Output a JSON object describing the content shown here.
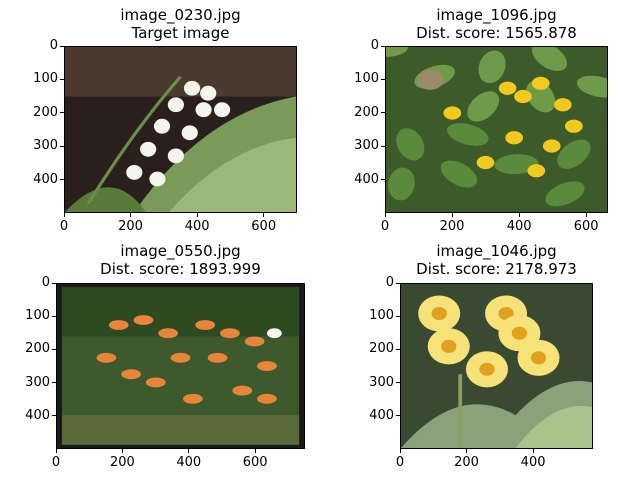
{
  "chart_data": [
    {
      "type": "image",
      "title_line1": "image_0230.jpg",
      "title_line2": "Target image",
      "image_subject": "lily-of-the-valley",
      "x_ticks": [
        "0",
        "200",
        "400",
        "600"
      ],
      "y_ticks": [
        "0",
        "100",
        "200",
        "300",
        "400"
      ],
      "xlim": [
        0,
        700
      ],
      "ylim": [
        500,
        0
      ]
    },
    {
      "type": "image",
      "title_line1": "image_1096.jpg",
      "title_line2": "Dist. score: 1565.878",
      "image_subject": "yellow-primula",
      "x_ticks": [
        "0",
        "200",
        "400",
        "600"
      ],
      "y_ticks": [
        "0",
        "100",
        "200",
        "300",
        "400"
      ],
      "xlim": [
        0,
        665
      ],
      "ylim": [
        500,
        0
      ]
    },
    {
      "type": "image",
      "title_line1": "image_0550.jpg",
      "title_line2": "Dist. score: 1893.999",
      "image_subject": "orange-lilies",
      "x_ticks": [
        "0",
        "200",
        "400",
        "600"
      ],
      "y_ticks": [
        "0",
        "100",
        "200",
        "300",
        "400"
      ],
      "xlim": [
        0,
        750
      ],
      "ylim": [
        500,
        0
      ]
    },
    {
      "type": "image",
      "title_line1": "image_1046.jpg",
      "title_line2": "Dist. score: 2178.973",
      "image_subject": "yellow-primrose",
      "x_ticks": [
        "0",
        "200",
        "400"
      ],
      "y_ticks": [
        "0",
        "100",
        "200",
        "300",
        "400"
      ],
      "xlim": [
        0,
        580
      ],
      "ylim": [
        500,
        0
      ]
    }
  ],
  "colors": {
    "dark_green": "#1f3a1a",
    "leaf_green": "#5a8a3c",
    "pale_leaf": "#a8c48a",
    "white_flower": "#f4f6ee",
    "yellow_flower": "#f2c91e",
    "pale_yellow": "#f7e27a",
    "orange_lily": "#e7863a"
  }
}
